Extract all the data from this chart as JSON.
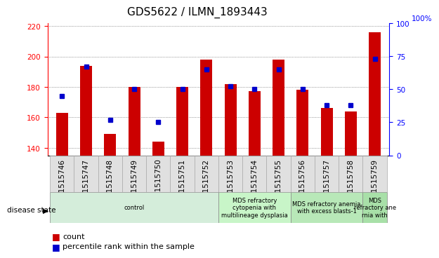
{
  "title": "GDS5622 / ILMN_1893443",
  "samples": [
    "GSM1515746",
    "GSM1515747",
    "GSM1515748",
    "GSM1515749",
    "GSM1515750",
    "GSM1515751",
    "GSM1515752",
    "GSM1515753",
    "GSM1515754",
    "GSM1515755",
    "GSM1515756",
    "GSM1515757",
    "GSM1515758",
    "GSM1515759"
  ],
  "counts": [
    163,
    194,
    149,
    180,
    144,
    180,
    198,
    182,
    177,
    198,
    178,
    166,
    164,
    216
  ],
  "percentile_ranks": [
    45,
    67,
    27,
    50,
    25,
    50,
    65,
    52,
    50,
    65,
    50,
    38,
    38,
    73
  ],
  "ylim_left": [
    135,
    222
  ],
  "ylim_right": [
    0,
    100
  ],
  "yticks_left": [
    140,
    160,
    180,
    200,
    220
  ],
  "yticks_right": [
    0,
    25,
    50,
    75,
    100
  ],
  "bar_color": "#cc0000",
  "dot_color": "#0000cc",
  "bar_width": 0.5,
  "grid_color": "#555555",
  "disease_groups": [
    {
      "label": "control",
      "start": 0,
      "end": 7,
      "color": "#d4edda"
    },
    {
      "label": "MDS refractory\ncytopenia with\nmultilineage dysplasia",
      "start": 7,
      "end": 10,
      "color": "#c8f5c8"
    },
    {
      "label": "MDS refractory anemia\nwith excess blasts-1",
      "start": 10,
      "end": 13,
      "color": "#b8e8b8"
    },
    {
      "label": "MDS\nrefractory ane\nrnia with",
      "start": 13,
      "end": 14,
      "color": "#a8e0a8"
    }
  ],
  "disease_state_label": "disease state",
  "legend_count_label": "count",
  "legend_percentile_label": "percentile rank within the sample",
  "title_fontsize": 11,
  "tick_fontsize": 7.5,
  "label_fontsize": 8
}
